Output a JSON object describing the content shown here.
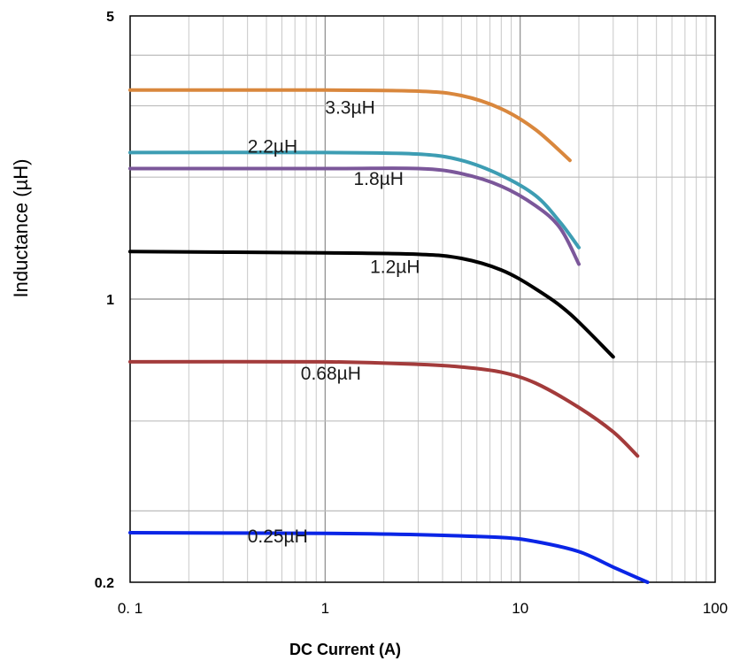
{
  "chart_data": {
    "type": "line",
    "title": "",
    "xlabel": "DC Current (A)",
    "ylabel": "Inductance (µH)",
    "x_scale": "log",
    "y_scale": "log",
    "xlim": [
      0.1,
      100
    ],
    "ylim": [
      0.2,
      5
    ],
    "grid": true,
    "legend": "inline labels",
    "x_ticks": [
      {
        "value": 0.1,
        "label": "0. 1"
      },
      {
        "value": 1,
        "label": "1"
      },
      {
        "value": 10,
        "label": "10"
      },
      {
        "value": 100,
        "label": "100"
      }
    ],
    "y_ticks": [
      {
        "value": 5,
        "label": "5"
      },
      {
        "value": 1,
        "label": "1"
      },
      {
        "value": 0.2,
        "label": "0.2"
      }
    ],
    "series": [
      {
        "name": "3.3µH",
        "color": "#D9873D",
        "label_x": 1.0,
        "label_y": 2.97,
        "points": [
          [
            0.1,
            3.28
          ],
          [
            1,
            3.28
          ],
          [
            3,
            3.26
          ],
          [
            5,
            3.18
          ],
          [
            8,
            2.95
          ],
          [
            12,
            2.62
          ],
          [
            18,
            2.2
          ]
        ]
      },
      {
        "name": "2.2µH",
        "color": "#3D9DB3",
        "label_x": 0.4,
        "label_y": 2.38,
        "points": [
          [
            0.1,
            2.3
          ],
          [
            1,
            2.3
          ],
          [
            3,
            2.28
          ],
          [
            5,
            2.2
          ],
          [
            8,
            2.02
          ],
          [
            12,
            1.8
          ],
          [
            16,
            1.55
          ],
          [
            20,
            1.34
          ]
        ]
      },
      {
        "name": "1.8µH",
        "color": "#7B579A",
        "label_x": 1.4,
        "label_y": 1.98,
        "points": [
          [
            0.1,
            2.1
          ],
          [
            1,
            2.1
          ],
          [
            3,
            2.1
          ],
          [
            5,
            2.04
          ],
          [
            8,
            1.9
          ],
          [
            12,
            1.7
          ],
          [
            16,
            1.5
          ],
          [
            20,
            1.22
          ]
        ]
      },
      {
        "name": "1.2µH",
        "color": "#000000",
        "label_x": 1.7,
        "label_y": 1.2,
        "points": [
          [
            0.1,
            1.31
          ],
          [
            1,
            1.3
          ],
          [
            3,
            1.29
          ],
          [
            5,
            1.26
          ],
          [
            8,
            1.18
          ],
          [
            12,
            1.06
          ],
          [
            18,
            0.92
          ],
          [
            30,
            0.72
          ]
        ]
      },
      {
        "name": "0.68µH",
        "color": "#A33B3B",
        "label_x": 0.75,
        "label_y": 0.655,
        "points": [
          [
            0.1,
            0.7
          ],
          [
            1,
            0.7
          ],
          [
            3,
            0.69
          ],
          [
            5,
            0.68
          ],
          [
            8,
            0.66
          ],
          [
            12,
            0.62
          ],
          [
            20,
            0.54
          ],
          [
            30,
            0.47
          ],
          [
            40,
            0.41
          ]
        ]
      },
      {
        "name": "0.25µH",
        "color": "#0A25E6",
        "label_x": 0.4,
        "label_y": 0.26,
        "points": [
          [
            0.1,
            0.265
          ],
          [
            1,
            0.264
          ],
          [
            3,
            0.262
          ],
          [
            8,
            0.258
          ],
          [
            12,
            0.252
          ],
          [
            20,
            0.238
          ],
          [
            30,
            0.218
          ],
          [
            40,
            0.205
          ],
          [
            45,
            0.2
          ]
        ]
      }
    ]
  }
}
